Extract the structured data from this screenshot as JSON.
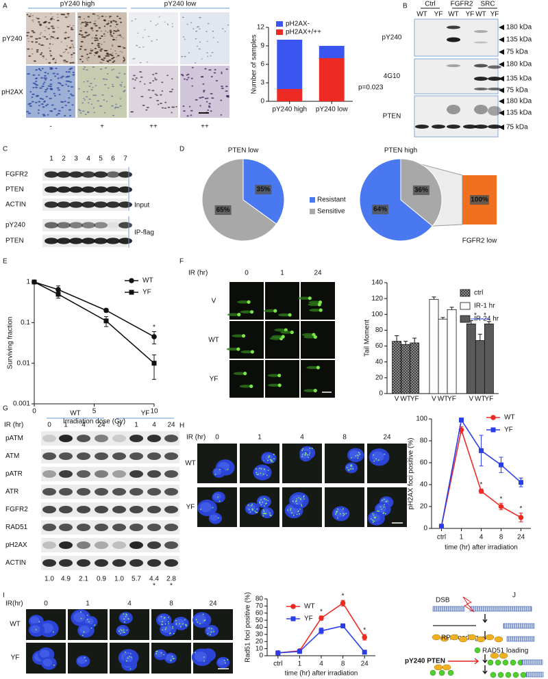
{
  "chart_data": [
    {
      "type": "bar",
      "stacked": true,
      "ylabel": "Number of samples",
      "categories": [
        "pY240 high",
        "pY240 low"
      ],
      "series": [
        {
          "name": "pH2AX+/++",
          "color": "#ee2a24",
          "values": [
            2,
            7
          ]
        },
        {
          "name": "pH2AX-",
          "color": "#3a55f0",
          "values": [
            8,
            2
          ]
        }
      ],
      "ylim": [
        0,
        12
      ],
      "yticks": [
        0,
        3,
        6,
        9,
        12
      ],
      "annotations": [
        "p=0.023"
      ]
    },
    {
      "type": "pie",
      "title": "PTEN low",
      "categories": [
        "Resistant",
        "Sensitive"
      ],
      "values": [
        35,
        65
      ],
      "value_labels": [
        "35%",
        "65%"
      ],
      "colors": [
        "#4a78f0",
        "#a8a8a8"
      ]
    },
    {
      "type": "pie",
      "title": "PTEN high",
      "values": [
        36,
        64
      ],
      "value_labels": [
        "36%",
        "64%"
      ],
      "colors": [
        "#a8a8a8",
        "#4a78f0"
      ]
    },
    {
      "type": "bar",
      "categories": [
        "FGFR2 low"
      ],
      "values": [
        100
      ],
      "value_labels": [
        "100%"
      ],
      "color": "#f07020"
    },
    {
      "type": "line",
      "yscale": "log",
      "ylabel": "Surviving fraction",
      "xlabel": "Irradiation dose (Gy)",
      "x": [
        0,
        2,
        6,
        10
      ],
      "xlim": [
        0,
        10
      ],
      "xticks": [
        0,
        5,
        10
      ],
      "ylim": [
        0.001,
        1
      ],
      "yticks": [
        0.001,
        0.01,
        0.1,
        1
      ],
      "series": [
        {
          "name": "WT",
          "color": "#111111",
          "marker": "circle",
          "values": [
            1,
            0.65,
            0.2,
            0.045
          ],
          "errors": [
            0.05,
            0.15,
            0.02,
            0.015
          ]
        },
        {
          "name": "YF",
          "color": "#111111",
          "marker": "square",
          "values": [
            1,
            0.5,
            0.11,
            0.01
          ],
          "errors": [
            0.05,
            0.1,
            0.03,
            0.006
          ]
        }
      ],
      "annotations": [
        "*"
      ]
    },
    {
      "type": "bar",
      "ylabel": "Tail Moment",
      "categories": [
        "V",
        "WT",
        "YF"
      ],
      "series": [
        {
          "name": "ctrl",
          "color": "#9a9a9a",
          "hatch": true,
          "values": [
            66,
            62,
            64
          ],
          "errors": [
            7,
            4,
            6
          ]
        },
        {
          "name": "IR-1 hr",
          "color": "#ffffff",
          "values": [
            119,
            94,
            106
          ],
          "errors": [
            3,
            2,
            3
          ]
        },
        {
          "name": "IR-24 hr",
          "color": "#5a5a5a",
          "values": [
            88,
            67,
            88
          ],
          "errors": [
            4,
            8,
            3
          ]
        }
      ],
      "ylim": [
        0,
        140
      ],
      "yticks": [
        0,
        20,
        40,
        60,
        80,
        100,
        120,
        140
      ],
      "annotations": [
        "*",
        "*"
      ]
    },
    {
      "type": "line",
      "ylabel": "pH2AX foci positive (%)",
      "xlabel": "time (hr) after irradiation",
      "categories": [
        "ctrl",
        "1",
        "4",
        "8",
        "24"
      ],
      "ylim": [
        0,
        100
      ],
      "yticks": [
        0,
        20,
        40,
        60,
        80,
        100
      ],
      "series": [
        {
          "name": "WT",
          "color": "#ee2a24",
          "marker": "circle",
          "values": [
            2,
            90,
            34,
            20,
            10
          ],
          "errors": [
            1,
            3,
            2,
            3,
            4
          ]
        },
        {
          "name": "YF",
          "color": "#2a3ee8",
          "marker": "square",
          "values": [
            2,
            99,
            71,
            58,
            42
          ],
          "errors": [
            1,
            1,
            14,
            7,
            4
          ]
        }
      ],
      "annotations": [
        "*",
        "*",
        "*"
      ]
    },
    {
      "type": "line",
      "ylabel": "Rad51 foci positive (%)",
      "xlabel": "time (hr) after irradiation",
      "categories": [
        "ctrl",
        "1",
        "4",
        "8",
        "24"
      ],
      "ylim": [
        0,
        80
      ],
      "yticks": [
        0,
        10,
        20,
        30,
        40,
        50,
        60,
        70,
        80
      ],
      "series": [
        {
          "name": "WT",
          "color": "#ee2a24",
          "marker": "circle",
          "values": [
            4,
            7,
            53,
            74,
            26
          ],
          "errors": [
            2,
            2,
            3,
            4,
            4
          ]
        },
        {
          "name": "YF",
          "color": "#2a3ee8",
          "marker": "square",
          "values": [
            4,
            6,
            35,
            42,
            5
          ],
          "errors": [
            1,
            2,
            4,
            3,
            1
          ]
        }
      ],
      "annotations": [
        "*",
        "*",
        "*"
      ]
    }
  ],
  "panels": {
    "A": {
      "letter": "A",
      "columns": [
        "pY240 high",
        "pY240 low"
      ],
      "rows": [
        "pY240",
        "pH2AX"
      ],
      "scores": [
        "-",
        "+",
        "++",
        "++"
      ]
    },
    "B": {
      "letter": "B",
      "groups": [
        "Ctrl",
        "FGFR2",
        "SRC"
      ],
      "lanes": [
        "WT",
        "YF",
        "WT",
        "YF",
        "WT",
        "YF"
      ],
      "rows": [
        "pY240",
        "4G10",
        "PTEN"
      ],
      "markers": [
        "180 kDa",
        "135 kDa",
        "75 kDa"
      ]
    },
    "C": {
      "letter": "C",
      "lanes": [
        "1",
        "2",
        "3",
        "4",
        "5",
        "6",
        "7"
      ],
      "rows": [
        "FGFR2",
        "PTEN",
        "ACTIN",
        "pY240",
        "PTEN"
      ],
      "groups": [
        "Input",
        "IP-flag"
      ]
    },
    "D": {
      "letter": "D"
    },
    "E": {
      "letter": "E"
    },
    "F": {
      "letter": "F",
      "time_label": "IR (hr)",
      "times": [
        "0",
        "1",
        "24"
      ],
      "rows": [
        "V",
        "WT",
        "YF"
      ]
    },
    "G": {
      "letter": "G",
      "groups": [
        "WT",
        "YF"
      ],
      "time_label": "IR (hr)",
      "times": [
        "0",
        "1",
        "4",
        "24",
        "0",
        "1",
        "4",
        "24"
      ],
      "rows": [
        "pATM",
        "ATM",
        "pATR",
        "ATR",
        "FGFR2",
        "RAD51",
        "pH2AX",
        "ACTIN"
      ],
      "quantification": [
        "1.0",
        "4.9",
        "2.1",
        "0.9",
        "1.0",
        "5.7",
        "4.4",
        "2.8"
      ],
      "significance": [
        "*",
        "*"
      ]
    },
    "H": {
      "letter": "H",
      "time_label": "IR (hr)",
      "times": [
        "0",
        "1",
        "4",
        "8",
        "24"
      ],
      "rows": [
        "WT",
        "YF"
      ]
    },
    "I": {
      "letter": "I",
      "time_label": "IR(hr)",
      "times": [
        "0",
        "1",
        "4",
        "8",
        "24"
      ],
      "rows": [
        "WT",
        "YF"
      ]
    },
    "J": {
      "letter": "J",
      "labels": {
        "dsb": "DSB",
        "rpa": "RPA loading",
        "rad51": "RAD51 loading",
        "pten": "pY240 PTEN"
      }
    }
  }
}
